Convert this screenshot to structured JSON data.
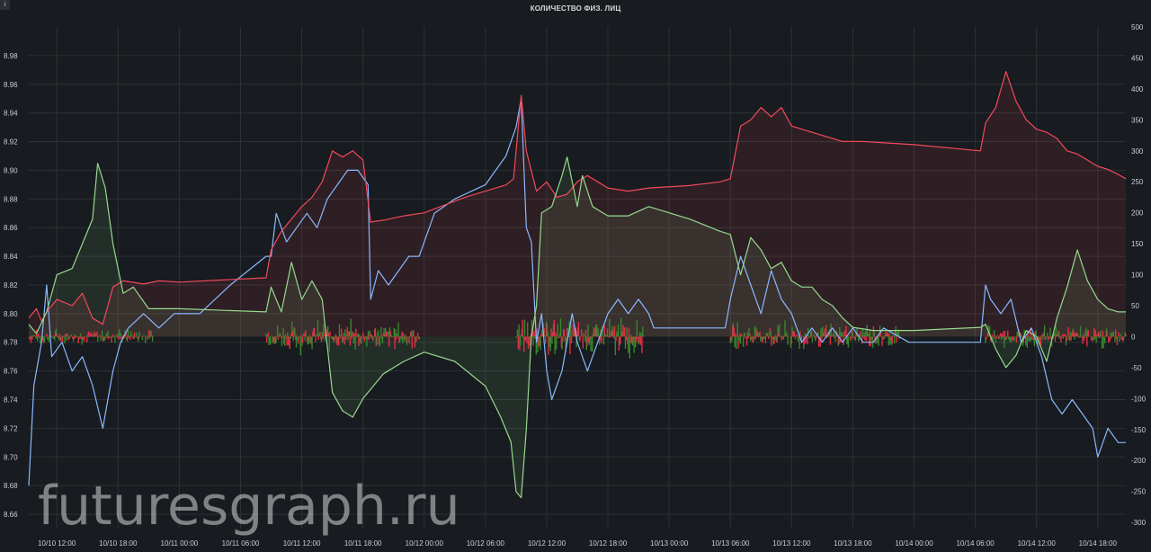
{
  "panel": {
    "info_icon": "i",
    "watermark": "futuresgraph.ru"
  },
  "chart_data": {
    "type": "line",
    "title": "КОЛИЧЕСТВО ФИЗ. ЛИЦ",
    "left_axis": {
      "ticks": [
        "8.66",
        "8.68",
        "8.70",
        "8.72",
        "8.74",
        "8.76",
        "8.78",
        "8.80",
        "8.82",
        "8.84",
        "8.86",
        "8.88",
        "8.90",
        "8.92",
        "8.94",
        "8.96",
        "8.98"
      ],
      "range": [
        8.65,
        9.0
      ]
    },
    "right_axis": {
      "ticks": [
        "-300",
        "-250",
        "-200",
        "-150",
        "-100",
        "-50",
        "0",
        "50",
        "100",
        "150",
        "200",
        "250",
        "300",
        "350",
        "400",
        "450",
        "500"
      ],
      "range": [
        -310,
        500
      ]
    },
    "x_ticks": [
      "10/10 12:00",
      "10/10 18:00",
      "10/11 00:00",
      "10/11 06:00",
      "10/11 12:00",
      "10/11 18:00",
      "10/12 00:00",
      "10/12 06:00",
      "10/12 12:00",
      "10/12 18:00",
      "10/13 00:00",
      "10/13 06:00",
      "10/13 12:00",
      "10/13 18:00",
      "10/14 00:00",
      "10/14 06:00",
      "10/14 12:00",
      "10/14 18:00"
    ],
    "x_range": [
      "10/10 09:15",
      "10/14 20:45"
    ],
    "grid": true,
    "colors": {
      "price": "#8ab8ff",
      "red": "#f2495c",
      "green": "#96d98d",
      "bars_green": "#37872d",
      "bars_red": "#e02f44",
      "grid": "#2c3235",
      "text": "#c7d0d9"
    },
    "series": [
      {
        "axis": "left",
        "color": "#8ab8ff",
        "points": [
          [
            "10/10 09:15",
            8.68
          ],
          [
            "10/10 09:45",
            8.75
          ],
          [
            "10/10 10:30",
            8.78
          ],
          [
            "10/10 11:00",
            8.82
          ],
          [
            "10/10 11:30",
            8.77
          ],
          [
            "10/10 12:30",
            8.78
          ],
          [
            "10/10 13:30",
            8.76
          ],
          [
            "10/10 14:30",
            8.77
          ],
          [
            "10/10 15:30",
            8.75
          ],
          [
            "10/10 16:30",
            8.72
          ],
          [
            "10/10 17:30",
            8.76
          ],
          [
            "10/10 18:15",
            8.78
          ],
          [
            "10/10 19:00",
            8.79
          ],
          [
            "10/10 20:30",
            8.8
          ],
          [
            "10/10 22:00",
            8.79
          ],
          [
            "10/10 23:30",
            8.8
          ],
          [
            "10/11 02:00",
            8.8
          ],
          [
            "10/11 05:00",
            8.82
          ],
          [
            "10/11 08:30",
            8.84
          ],
          [
            "10/11 09:00",
            8.84
          ],
          [
            "10/11 09:30",
            8.87
          ],
          [
            "10/11 10:30",
            8.85
          ],
          [
            "10/11 11:30",
            8.86
          ],
          [
            "10/11 12:30",
            8.87
          ],
          [
            "10/11 13:30",
            8.86
          ],
          [
            "10/11 14:30",
            8.88
          ],
          [
            "10/11 15:30",
            8.89
          ],
          [
            "10/11 16:30",
            8.9
          ],
          [
            "10/11 17:30",
            8.9
          ],
          [
            "10/11 18:30",
            8.89
          ],
          [
            "10/11 18:45",
            8.81
          ],
          [
            "10/11 19:30",
            8.83
          ],
          [
            "10/11 20:30",
            8.82
          ],
          [
            "10/11 21:30",
            8.83
          ],
          [
            "10/11 22:30",
            8.84
          ],
          [
            "10/11 23:30",
            8.84
          ],
          [
            "10/12 01:00",
            8.87
          ],
          [
            "10/12 03:00",
            8.88
          ],
          [
            "10/12 06:00",
            8.89
          ],
          [
            "10/12 08:00",
            8.91
          ],
          [
            "10/12 09:00",
            8.93
          ],
          [
            "10/12 09:30",
            8.95
          ],
          [
            "10/12 10:00",
            8.86
          ],
          [
            "10/12 10:30",
            8.85
          ],
          [
            "10/12 11:00",
            8.78
          ],
          [
            "10/12 11:30",
            8.8
          ],
          [
            "10/12 12:00",
            8.76
          ],
          [
            "10/12 12:30",
            8.74
          ],
          [
            "10/12 13:30",
            8.76
          ],
          [
            "10/12 14:30",
            8.8
          ],
          [
            "10/12 15:00",
            8.78
          ],
          [
            "10/12 16:00",
            8.76
          ],
          [
            "10/12 17:00",
            8.78
          ],
          [
            "10/12 18:00",
            8.8
          ],
          [
            "10/12 19:00",
            8.81
          ],
          [
            "10/12 20:00",
            8.8
          ],
          [
            "10/12 21:00",
            8.81
          ],
          [
            "10/12 22:00",
            8.8
          ],
          [
            "10/12 22:30",
            8.79
          ],
          [
            "10/13 05:30",
            8.79
          ],
          [
            "10/13 06:00",
            8.81
          ],
          [
            "10/13 07:00",
            8.84
          ],
          [
            "10/13 08:00",
            8.82
          ],
          [
            "10/13 09:00",
            8.8
          ],
          [
            "10/13 10:00",
            8.83
          ],
          [
            "10/13 11:00",
            8.81
          ],
          [
            "10/13 12:00",
            8.8
          ],
          [
            "10/13 13:00",
            8.78
          ],
          [
            "10/13 14:00",
            8.79
          ],
          [
            "10/13 15:00",
            8.78
          ],
          [
            "10/13 16:00",
            8.79
          ],
          [
            "10/13 17:00",
            8.78
          ],
          [
            "10/13 18:00",
            8.79
          ],
          [
            "10/13 19:00",
            8.78
          ],
          [
            "10/13 20:00",
            8.78
          ],
          [
            "10/13 21:00",
            8.79
          ],
          [
            "10/13 23:30",
            8.78
          ],
          [
            "10/14 00:00",
            8.78
          ],
          [
            "10/14 06:30",
            8.78
          ],
          [
            "10/14 07:00",
            8.82
          ],
          [
            "10/14 07:30",
            8.81
          ],
          [
            "10/14 08:30",
            8.8
          ],
          [
            "10/14 09:30",
            8.81
          ],
          [
            "10/14 10:30",
            8.78
          ],
          [
            "10/14 11:30",
            8.79
          ],
          [
            "10/14 12:30",
            8.77
          ],
          [
            "10/14 13:30",
            8.74
          ],
          [
            "10/14 14:30",
            8.73
          ],
          [
            "10/14 15:30",
            8.74
          ],
          [
            "10/14 16:30",
            8.73
          ],
          [
            "10/14 17:30",
            8.72
          ],
          [
            "10/14 18:00",
            8.7
          ],
          [
            "10/14 19:00",
            8.72
          ],
          [
            "10/14 20:00",
            8.71
          ],
          [
            "10/14 20:45",
            8.71
          ]
        ]
      },
      {
        "axis": "right",
        "color": "#f2495c",
        "fill": true,
        "points": [
          [
            "10/10 09:15",
            30
          ],
          [
            "10/10 10:00",
            45
          ],
          [
            "10/10 10:30",
            25
          ],
          [
            "10/10 11:00",
            40
          ],
          [
            "10/10 12:00",
            60
          ],
          [
            "10/10 13:30",
            50
          ],
          [
            "10/10 14:30",
            70
          ],
          [
            "10/10 15:30",
            30
          ],
          [
            "10/10 16:30",
            20
          ],
          [
            "10/10 17:00",
            50
          ],
          [
            "10/10 17:30",
            80
          ],
          [
            "10/10 18:30",
            90
          ],
          [
            "10/10 20:30",
            85
          ],
          [
            "10/10 22:00",
            90
          ],
          [
            "10/11 00:00",
            88
          ],
          [
            "10/11 08:30",
            95
          ],
          [
            "10/11 09:00",
            140
          ],
          [
            "10/11 10:00",
            170
          ],
          [
            "10/11 11:00",
            190
          ],
          [
            "10/11 12:00",
            210
          ],
          [
            "10/11 13:00",
            225
          ],
          [
            "10/11 14:00",
            250
          ],
          [
            "10/11 15:00",
            300
          ],
          [
            "10/11 16:00",
            290
          ],
          [
            "10/11 17:00",
            300
          ],
          [
            "10/11 18:00",
            285
          ],
          [
            "10/11 18:45",
            185
          ],
          [
            "10/11 20:00",
            188
          ],
          [
            "10/11 22:00",
            195
          ],
          [
            "10/12 00:00",
            200
          ],
          [
            "10/12 04:00",
            225
          ],
          [
            "10/12 08:00",
            245
          ],
          [
            "10/12 08:45",
            255
          ],
          [
            "10/12 09:30",
            390
          ],
          [
            "10/12 10:00",
            300
          ],
          [
            "10/12 11:00",
            235
          ],
          [
            "10/12 12:00",
            250
          ],
          [
            "10/12 13:00",
            225
          ],
          [
            "10/12 14:00",
            230
          ],
          [
            "10/12 15:00",
            250
          ],
          [
            "10/12 16:00",
            260
          ],
          [
            "10/12 17:00",
            250
          ],
          [
            "10/12 18:00",
            240
          ],
          [
            "10/12 20:00",
            235
          ],
          [
            "10/12 22:00",
            240
          ],
          [
            "10/13 02:00",
            244
          ],
          [
            "10/13 05:00",
            250
          ],
          [
            "10/13 06:00",
            255
          ],
          [
            "10/13 07:00",
            340
          ],
          [
            "10/13 08:00",
            350
          ],
          [
            "10/13 09:00",
            370
          ],
          [
            "10/13 10:00",
            355
          ],
          [
            "10/13 11:00",
            370
          ],
          [
            "10/13 12:00",
            340
          ],
          [
            "10/13 13:00",
            335
          ],
          [
            "10/13 15:00",
            325
          ],
          [
            "10/13 17:00",
            315
          ],
          [
            "10/13 19:00",
            315
          ],
          [
            "10/14 00:00",
            310
          ],
          [
            "10/14 06:30",
            300
          ],
          [
            "10/14 07:00",
            345
          ],
          [
            "10/14 08:00",
            370
          ],
          [
            "10/14 09:00",
            428
          ],
          [
            "10/14 10:00",
            380
          ],
          [
            "10/14 11:00",
            350
          ],
          [
            "10/14 12:00",
            335
          ],
          [
            "10/14 13:00",
            330
          ],
          [
            "10/14 14:00",
            320
          ],
          [
            "10/14 15:00",
            300
          ],
          [
            "10/14 16:00",
            295
          ],
          [
            "10/14 17:00",
            285
          ],
          [
            "10/14 18:00",
            275
          ],
          [
            "10/14 19:00",
            270
          ],
          [
            "10/14 20:00",
            262
          ],
          [
            "10/14 20:45",
            255
          ]
        ]
      },
      {
        "axis": "right",
        "color": "#96d98d",
        "fill": true,
        "points": [
          [
            "10/10 09:15",
            20
          ],
          [
            "10/10 10:00",
            5
          ],
          [
            "10/10 11:00",
            40
          ],
          [
            "10/10 12:00",
            100
          ],
          [
            "10/10 13:30",
            110
          ],
          [
            "10/10 14:30",
            150
          ],
          [
            "10/10 15:30",
            190
          ],
          [
            "10/10 16:00",
            280
          ],
          [
            "10/10 16:45",
            240
          ],
          [
            "10/10 17:30",
            150
          ],
          [
            "10/10 18:30",
            70
          ],
          [
            "10/10 19:30",
            80
          ],
          [
            "10/10 21:00",
            45
          ],
          [
            "10/11 00:00",
            45
          ],
          [
            "10/11 08:30",
            40
          ],
          [
            "10/11 09:00",
            80
          ],
          [
            "10/11 10:00",
            40
          ],
          [
            "10/11 11:00",
            120
          ],
          [
            "10/11 12:00",
            60
          ],
          [
            "10/11 13:00",
            90
          ],
          [
            "10/11 14:00",
            60
          ],
          [
            "10/11 15:00",
            -90
          ],
          [
            "10/11 16:00",
            -120
          ],
          [
            "10/11 17:00",
            -130
          ],
          [
            "10/11 18:00",
            -100
          ],
          [
            "10/11 19:00",
            -80
          ],
          [
            "10/11 20:00",
            -60
          ],
          [
            "10/11 22:00",
            -40
          ],
          [
            "10/12 00:00",
            -25
          ],
          [
            "10/12 03:00",
            -40
          ],
          [
            "10/12 06:00",
            -80
          ],
          [
            "10/12 07:30",
            -130
          ],
          [
            "10/12 08:30",
            -170
          ],
          [
            "10/12 09:00",
            -250
          ],
          [
            "10/12 09:30",
            -260
          ],
          [
            "10/12 10:00",
            -150
          ],
          [
            "10/12 10:30",
            0
          ],
          [
            "10/12 11:00",
            50
          ],
          [
            "10/12 11:30",
            200
          ],
          [
            "10/12 12:30",
            210
          ],
          [
            "10/12 13:30",
            260
          ],
          [
            "10/12 14:00",
            290
          ],
          [
            "10/12 15:00",
            210
          ],
          [
            "10/12 15:30",
            260
          ],
          [
            "10/12 16:30",
            210
          ],
          [
            "10/12 18:00",
            195
          ],
          [
            "10/12 20:00",
            195
          ],
          [
            "10/12 22:00",
            210
          ],
          [
            "10/13 00:00",
            200
          ],
          [
            "10/13 02:00",
            190
          ],
          [
            "10/13 05:00",
            170
          ],
          [
            "10/13 06:00",
            165
          ],
          [
            "10/13 07:00",
            100
          ],
          [
            "10/13 08:00",
            160
          ],
          [
            "10/13 09:00",
            140
          ],
          [
            "10/13 10:00",
            110
          ],
          [
            "10/13 11:00",
            120
          ],
          [
            "10/13 12:00",
            90
          ],
          [
            "10/13 13:00",
            80
          ],
          [
            "10/13 14:00",
            80
          ],
          [
            "10/13 15:00",
            60
          ],
          [
            "10/13 16:00",
            50
          ],
          [
            "10/13 17:00",
            30
          ],
          [
            "10/13 18:00",
            15
          ],
          [
            "10/13 20:00",
            10
          ],
          [
            "10/14 00:00",
            10
          ],
          [
            "10/14 06:30",
            15
          ],
          [
            "10/14 07:00",
            20
          ],
          [
            "10/14 08:00",
            -20
          ],
          [
            "10/14 09:00",
            -50
          ],
          [
            "10/14 10:00",
            -30
          ],
          [
            "10/14 11:00",
            10
          ],
          [
            "10/14 12:00",
            0
          ],
          [
            "10/14 13:00",
            -40
          ],
          [
            "10/14 14:00",
            30
          ],
          [
            "10/14 15:00",
            80
          ],
          [
            "10/14 16:00",
            140
          ],
          [
            "10/14 17:00",
            90
          ],
          [
            "10/14 18:00",
            60
          ],
          [
            "10/14 19:00",
            45
          ],
          [
            "10/14 20:00",
            40
          ],
          [
            "10/14 20:45",
            40
          ]
        ]
      }
    ],
    "bar_segments": [
      {
        "from": "10/10 09:15",
        "to": "10/10 21:30",
        "amplitude": 12
      },
      {
        "from": "10/11 08:30",
        "to": "10/11 23:30",
        "amplitude": 22
      },
      {
        "from": "10/12 09:00",
        "to": "10/12 21:30",
        "amplitude": 30
      },
      {
        "from": "10/13 06:00",
        "to": "10/13 22:30",
        "amplitude": 20
      },
      {
        "from": "10/14 07:00",
        "to": "10/14 20:45",
        "amplitude": 16
      }
    ]
  }
}
